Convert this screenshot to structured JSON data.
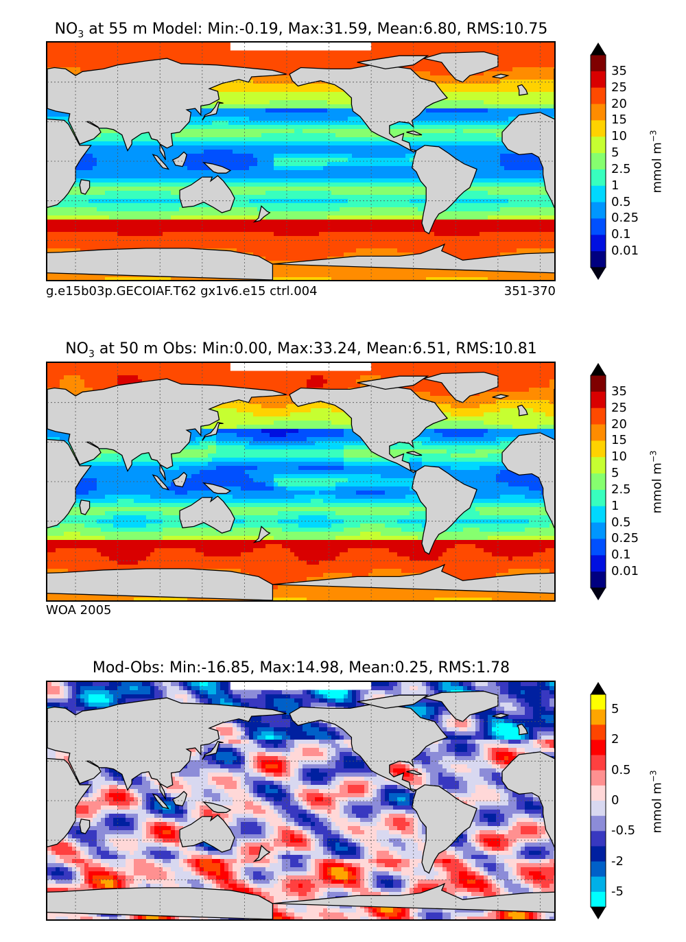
{
  "panels": [
    {
      "title_prefix": "NO",
      "title_sub": "3",
      "title_rest": " at 55 m Model: Min:-0.19, Max:31.59, Mean:6.80, RMS:10.75",
      "footer_left": "g.e15b03p.GECOIAF.T62 gx1v6.e15 ctrl.004",
      "footer_right": "351-370",
      "unit_base": "mmol m",
      "unit_sup": "−3",
      "levels": [
        "35",
        "25",
        "20",
        "15",
        "10",
        "5",
        "2.5",
        "1",
        "0.5",
        "0.25",
        "0.1",
        "0.01"
      ],
      "colors": [
        "#7f0000",
        "#d90000",
        "#ff4a00",
        "#ff8c00",
        "#ffd200",
        "#c6ff31",
        "#86ff6f",
        "#38ffbe",
        "#00d8ff",
        "#0096ff",
        "#0050ff",
        "#0010e0",
        "#000080"
      ]
    },
    {
      "title_prefix": "NO",
      "title_sub": "3",
      "title_rest": " at 50 m Obs: Min:0.00, Max:33.24, Mean:6.51, RMS:10.81",
      "footer_left": "WOA 2005",
      "footer_right": "",
      "unit_base": "mmol m",
      "unit_sup": "−3",
      "levels": [
        "35",
        "25",
        "20",
        "15",
        "10",
        "5",
        "2.5",
        "1",
        "0.5",
        "0.25",
        "0.1",
        "0.01"
      ],
      "colors": [
        "#7f0000",
        "#d90000",
        "#ff4a00",
        "#ff8c00",
        "#ffd200",
        "#c6ff31",
        "#86ff6f",
        "#38ffbe",
        "#00d8ff",
        "#0096ff",
        "#0050ff",
        "#0010e0",
        "#000080"
      ]
    },
    {
      "title_prefix": "",
      "title_sub": "",
      "title_rest": "Mod-Obs: Min:-16.85, Max:14.98, Mean:0.25, RMS:1.78",
      "footer_left": "",
      "footer_right": "",
      "unit_base": "mmol m",
      "unit_sup": "−3",
      "levels": [
        "5",
        "2",
        "0.5",
        "0",
        "-0.5",
        "-2",
        "-5"
      ],
      "colors": [
        "#ffff00",
        "#ffa500",
        "#ff4500",
        "#ff0000",
        "#ff4040",
        "#ff9090",
        "#ffd8d8",
        "#d8d8f0",
        "#8c8cd8",
        "#3838c0",
        "#0020a0",
        "#0060c8",
        "#00b0e8",
        "#00ffff"
      ]
    }
  ]
}
